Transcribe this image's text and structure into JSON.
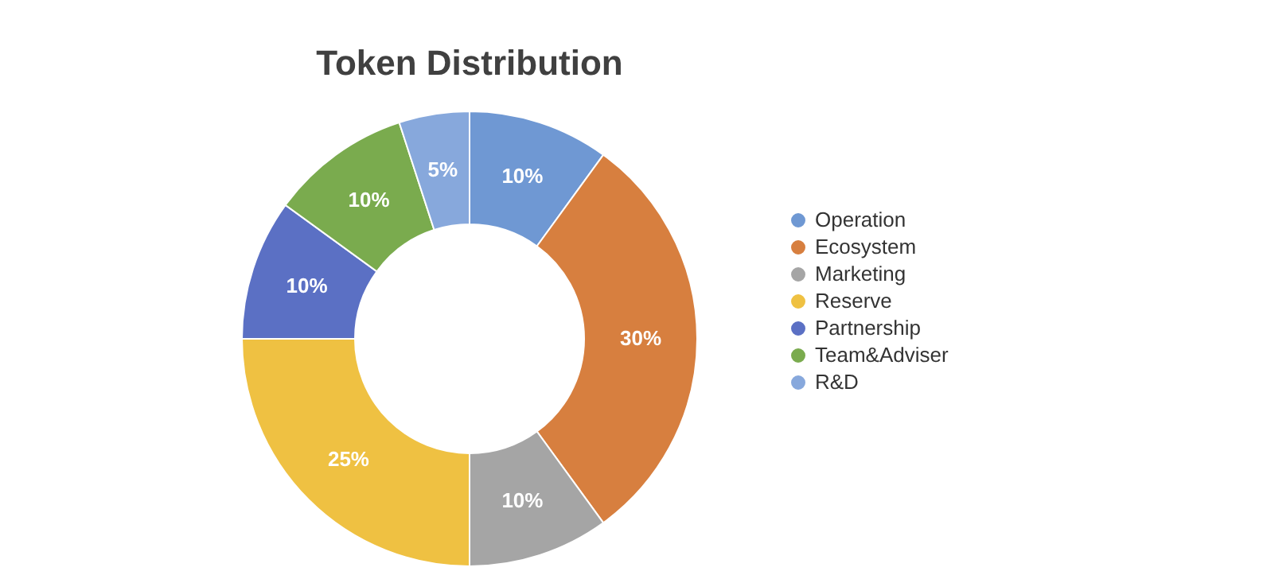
{
  "chart_data": {
    "type": "donut",
    "title": "Token Distribution",
    "categories": [
      "Operation",
      "Ecosystem",
      "Marketing",
      "Reserve",
      "Partnership",
      "Team&Adviser",
      "R&D"
    ],
    "values": [
      10,
      30,
      10,
      25,
      10,
      10,
      5
    ],
    "colors": [
      "#6f98d3",
      "#d77f3f",
      "#a5a5a5",
      "#efc142",
      "#5b70c4",
      "#7aab4e",
      "#87a8dc"
    ],
    "value_labels": [
      "10%",
      "30%",
      "10%",
      "25%",
      "10%",
      "10%",
      "5%"
    ],
    "legend": "right"
  }
}
